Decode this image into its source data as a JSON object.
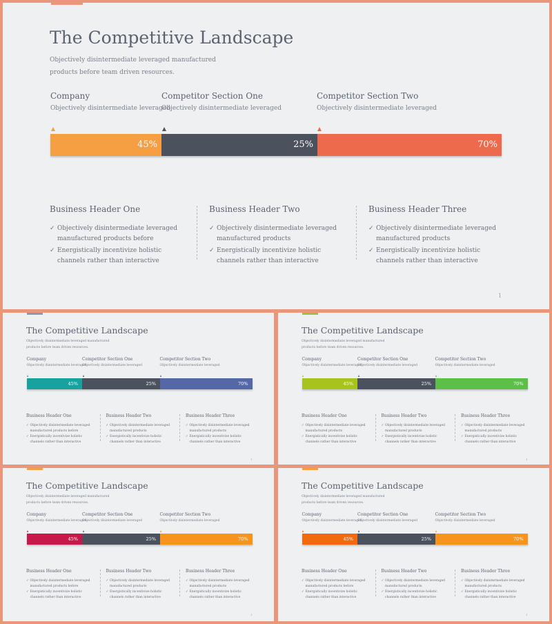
{
  "slides": [
    {
      "title": "The Competitive Landscape",
      "subtitle": "Objectively disintermediate leveraged manufactured products before team driven resources.",
      "competitors": [
        {
          "label": "Company",
          "desc": "Objectively disintermediate leveraged",
          "percent": "45%"
        },
        {
          "label": "Competitor Section One",
          "desc": "Objectively disintermediate leveraged",
          "percent": "25%"
        },
        {
          "label": "Competitor Section Two",
          "desc": "Objectively disintermediate leveraged",
          "percent": "70%"
        }
      ],
      "business": [
        {
          "header": "Business Header One",
          "items": [
            "Objectively disintermediate leveraged manufactured products before",
            "Energistically incentivize holistic channels rather than interactive"
          ]
        },
        {
          "header": "Business Header Two",
          "items": [
            "Objectively disintermediate leveraged manufactured products",
            "Energistically incentivize holistic channels rather than interactive"
          ]
        },
        {
          "header": "Business Header Three",
          "items": [
            "Objectively disintermediate leveraged manufactured products",
            "Energistically incentivize holistic channels rather than interactive"
          ]
        }
      ],
      "check_symbol": "✓",
      "page_number": "1",
      "colors": {
        "accent": "#e9967a",
        "seg1": "#f59e42",
        "seg2": "#4b525e",
        "seg3": "#ee6a4d",
        "marker1": "#f59e42",
        "marker2": "#4b525e",
        "marker3": "#ee6a4d"
      }
    },
    {
      "title": "The Competitive Landscape",
      "subtitle": "Objectively disintermediate leveraged manufactured products before team driven resources.",
      "competitors": [
        {
          "label": "Company",
          "desc": "Objectively disintermediate leveraged",
          "percent": "45%"
        },
        {
          "label": "Competitor Section One",
          "desc": "Objectively disintermediate leveraged",
          "percent": "25%"
        },
        {
          "label": "Competitor Section Two",
          "desc": "Objectively disintermediate leveraged",
          "percent": "70%"
        }
      ],
      "business": [
        {
          "header": "Business Header One",
          "items": [
            "Objectively disintermediate leveraged manufactured products before",
            "Energistically incentivize holistic channels rather than interactive"
          ]
        },
        {
          "header": "Business Header Two",
          "items": [
            "Objectively disintermediate leveraged manufactured products",
            "Energistically incentivize holistic channels rather than interactive"
          ]
        },
        {
          "header": "Business Header Three",
          "items": [
            "Objectively disintermediate leveraged manufactured products",
            "Energistically incentivize holistic channels rather than interactive"
          ]
        }
      ],
      "check_symbol": "✓",
      "page_number": "1",
      "colors": {
        "accent": "#8a9aa8",
        "seg1": "#17a2a0",
        "seg2": "#4b525e",
        "seg3": "#5468a8",
        "marker1": "#17a2a0",
        "marker2": "#4b525e",
        "marker3": "#5468a8"
      }
    },
    {
      "title": "The Competitive Landscape",
      "subtitle": "Objectively disintermediate leveraged manufactured products before team driven resources.",
      "competitors": [
        {
          "label": "Company",
          "desc": "Objectively disintermediate leveraged",
          "percent": "45%"
        },
        {
          "label": "Competitor Section One",
          "desc": "Objectively disintermediate leveraged",
          "percent": "25%"
        },
        {
          "label": "Competitor Section Two",
          "desc": "Objectively disintermediate leveraged",
          "percent": "70%"
        }
      ],
      "business": [
        {
          "header": "Business Header One",
          "items": [
            "Objectively disintermediate leveraged manufactured products",
            "Energistically incentivize holistic channels rather than interactive"
          ]
        },
        {
          "header": "Business Header Two",
          "items": [
            "Objectively disintermediate leveraged manufactured products",
            "Energistically incentivize holistic channels rather than interactive"
          ]
        },
        {
          "header": "Business Header Three",
          "items": [
            "Objectively disintermediate leveraged manufactured products",
            "Energistically incentivize holistic channels rather than interactive"
          ]
        }
      ],
      "check_symbol": "✓",
      "page_number": "1",
      "colors": {
        "accent": "#9cc23a",
        "seg1": "#a8c41c",
        "seg2": "#4b525e",
        "seg3": "#5cbf48",
        "marker1": "#a8c41c",
        "marker2": "#4b525e",
        "marker3": "#5cbf48"
      }
    },
    {
      "title": "The Competitive Landscape",
      "subtitle": "Objectively disintermediate leveraged manufactured products before team driven resources.",
      "competitors": [
        {
          "label": "Company",
          "desc": "Objectively disintermediate leveraged",
          "percent": "45%"
        },
        {
          "label": "Competitor Section One",
          "desc": "Objectively disintermediate leveraged",
          "percent": "25%"
        },
        {
          "label": "Competitor Section Two",
          "desc": "Objectively disintermediate leveraged",
          "percent": "70%"
        }
      ],
      "business": [
        {
          "header": "Business Header One",
          "items": [
            "Objectively disintermediate leveraged manufactured products before",
            "Energistically incentivize holistic channels rather than interactive"
          ]
        },
        {
          "header": "Business Header Two",
          "items": [
            "Objectively disintermediate leveraged manufactured products",
            "Energistically incentivize holistic channels rather than interactive"
          ]
        },
        {
          "header": "Business Header Three",
          "items": [
            "Objectively disintermediate leveraged manufactured products",
            "Energistically incentivize holistic channels rather than interactive"
          ]
        }
      ],
      "check_symbol": "✓",
      "page_number": "1",
      "colors": {
        "accent": "#f0a04b",
        "seg1": "#c8174a",
        "seg2": "#4b525e",
        "seg3": "#f7941d",
        "marker1": "#c8174a",
        "marker2": "#4b525e",
        "marker3": "#f7941d"
      }
    },
    {
      "title": "The Competitive Landscape",
      "subtitle": "Objectively disintermediate leveraged manufactured products before team driven resources.",
      "competitors": [
        {
          "label": "Company",
          "desc": "Objectively disintermediate leveraged",
          "percent": "45%"
        },
        {
          "label": "Competitor Section One",
          "desc": "Objectively disintermediate leveraged",
          "percent": "25%"
        },
        {
          "label": "Competitor Section Two",
          "desc": "Objectively disintermediate leveraged",
          "percent": "70%"
        }
      ],
      "business": [
        {
          "header": "Business Header One",
          "items": [
            "Objectively disintermediate leveraged manufactured products before",
            "Energistically incentivize holistic channels rather than interactive"
          ]
        },
        {
          "header": "Business Header Two",
          "items": [
            "Objectively disintermediate leveraged manufactured products",
            "Energistically incentivize holistic channels rather than interactive"
          ]
        },
        {
          "header": "Business Header Three",
          "items": [
            "Objectively disintermediate leveraged manufactured products",
            "Energistically incentivize holistic channels rather than interactive"
          ]
        }
      ],
      "check_symbol": "✓",
      "page_number": "1",
      "colors": {
        "accent": "#f59e42",
        "seg1": "#f26a0f",
        "seg2": "#4b525e",
        "seg3": "#f7941d",
        "marker1": "#f26a0f",
        "marker2": "#4b525e",
        "marker3": "#f7941d"
      }
    }
  ]
}
